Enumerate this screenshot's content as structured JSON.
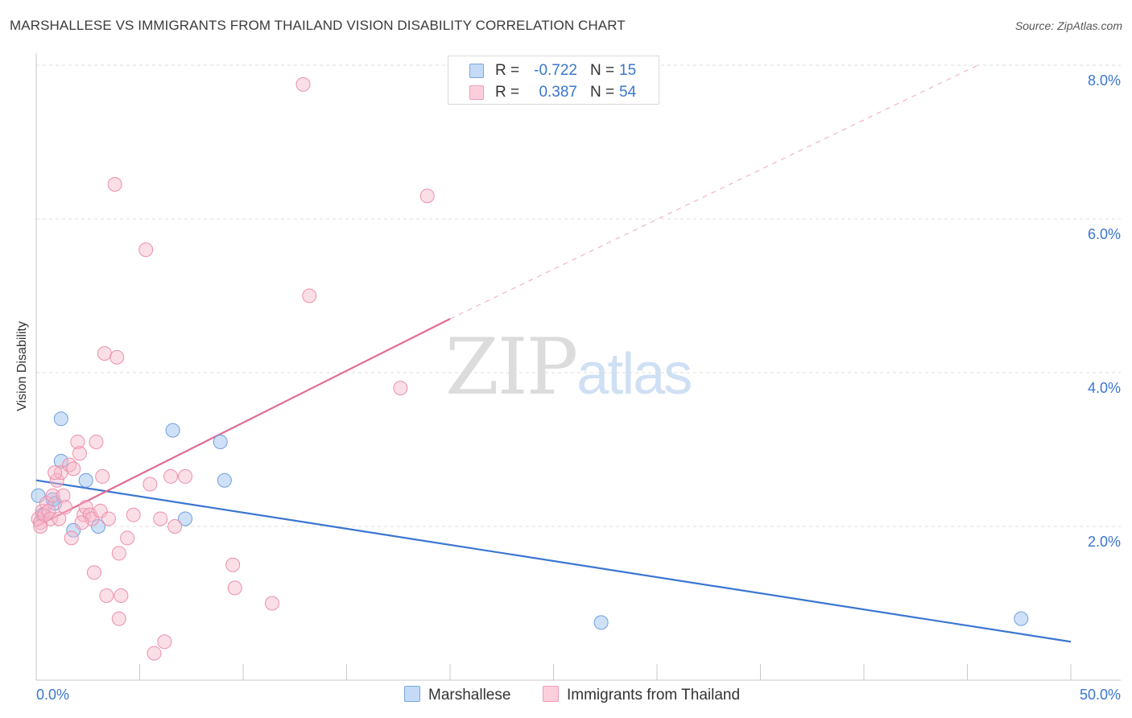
{
  "title": "MARSHALLESE VS IMMIGRANTS FROM THAILAND VISION DISABILITY CORRELATION CHART",
  "source": "Source: ZipAtlas.com",
  "watermark": {
    "zip": "ZIP",
    "atlas": "atlas"
  },
  "legend": {
    "rows": [
      {
        "r_label": "R =",
        "r_value": "-0.722",
        "n_label": "N =",
        "n_value": "15",
        "color": "#a8c8f0"
      },
      {
        "r_label": "R =",
        "r_value": "0.387",
        "n_label": "N =",
        "n_value": "54",
        "color": "#f7b8c9"
      }
    ]
  },
  "bottom_legend": [
    "Marshallese",
    "Immigrants from Thailand"
  ],
  "chart_data": {
    "type": "scatter",
    "title": "MARSHALLESE VS IMMIGRANTS FROM THAILAND VISION DISABILITY CORRELATION CHART",
    "xlabel": "",
    "ylabel": "Vision Disability",
    "xlim": [
      0,
      50
    ],
    "ylim": [
      0,
      8
    ],
    "x_tick_labels": [
      "0.0%",
      "50.0%"
    ],
    "y_ticks": [
      2,
      4,
      6,
      8
    ],
    "y_tick_labels": [
      "2.0%",
      "4.0%",
      "6.0%",
      "8.0%"
    ],
    "grid": true,
    "legend_position": "top-center",
    "colors": {
      "blue": "#3a76d1",
      "blue_fill": "#a8c8f0",
      "pink": "#e36b94",
      "pink_fill": "#f7b8c9"
    },
    "series": [
      {
        "name": "Marshallese",
        "color": "#3a76d1",
        "points": [
          [
            0.1,
            2.4
          ],
          [
            0.8,
            2.35
          ],
          [
            0.9,
            2.3
          ],
          [
            1.2,
            2.85
          ],
          [
            1.2,
            3.4
          ],
          [
            1.8,
            1.95
          ],
          [
            2.4,
            2.6
          ],
          [
            3.0,
            2.0
          ],
          [
            6.6,
            3.25
          ],
          [
            7.2,
            2.1
          ],
          [
            8.9,
            3.1
          ],
          [
            9.1,
            2.6
          ],
          [
            27.3,
            0.75
          ],
          [
            47.6,
            0.8
          ],
          [
            0.3,
            2.15
          ]
        ],
        "trend": {
          "x": [
            0,
            50
          ],
          "y": [
            2.6,
            0.5
          ],
          "dashed_after": null
        }
      },
      {
        "name": "Immigrants from Thailand",
        "color": "#e36b94",
        "points": [
          [
            0.1,
            2.1
          ],
          [
            0.2,
            2.05
          ],
          [
            0.3,
            2.2
          ],
          [
            0.4,
            2.15
          ],
          [
            0.5,
            2.3
          ],
          [
            0.6,
            2.2
          ],
          [
            0.7,
            2.1
          ],
          [
            0.8,
            2.4
          ],
          [
            1.0,
            2.6
          ],
          [
            1.2,
            2.7
          ],
          [
            1.3,
            2.4
          ],
          [
            1.4,
            2.25
          ],
          [
            1.6,
            2.8
          ],
          [
            1.7,
            1.85
          ],
          [
            1.8,
            2.75
          ],
          [
            2.0,
            3.1
          ],
          [
            2.1,
            2.95
          ],
          [
            2.3,
            2.15
          ],
          [
            2.4,
            2.25
          ],
          [
            2.6,
            2.15
          ],
          [
            2.7,
            2.1
          ],
          [
            2.8,
            1.4
          ],
          [
            2.9,
            3.1
          ],
          [
            3.1,
            2.2
          ],
          [
            3.2,
            2.65
          ],
          [
            3.3,
            4.25
          ],
          [
            3.4,
            1.1
          ],
          [
            3.5,
            2.1
          ],
          [
            3.8,
            6.45
          ],
          [
            3.9,
            4.2
          ],
          [
            4.0,
            1.65
          ],
          [
            4.0,
            0.8
          ],
          [
            4.1,
            1.1
          ],
          [
            4.4,
            1.85
          ],
          [
            4.7,
            2.15
          ],
          [
            5.3,
            5.6
          ],
          [
            5.5,
            2.55
          ],
          [
            5.7,
            0.35
          ],
          [
            6.0,
            2.1
          ],
          [
            6.2,
            0.5
          ],
          [
            6.5,
            2.65
          ],
          [
            6.7,
            2.0
          ],
          [
            7.2,
            2.65
          ],
          [
            9.5,
            1.5
          ],
          [
            9.6,
            1.2
          ],
          [
            11.4,
            1.0
          ],
          [
            12.9,
            7.75
          ],
          [
            13.2,
            5.0
          ],
          [
            17.6,
            3.8
          ],
          [
            18.9,
            6.3
          ],
          [
            0.2,
            2.0
          ],
          [
            1.1,
            2.1
          ],
          [
            2.2,
            2.05
          ],
          [
            0.9,
            2.7
          ]
        ],
        "trend": {
          "x": [
            0,
            20,
            45.5
          ],
          "y": [
            2.0,
            4.7,
            8.0
          ],
          "dashed_after": 20
        }
      }
    ]
  }
}
